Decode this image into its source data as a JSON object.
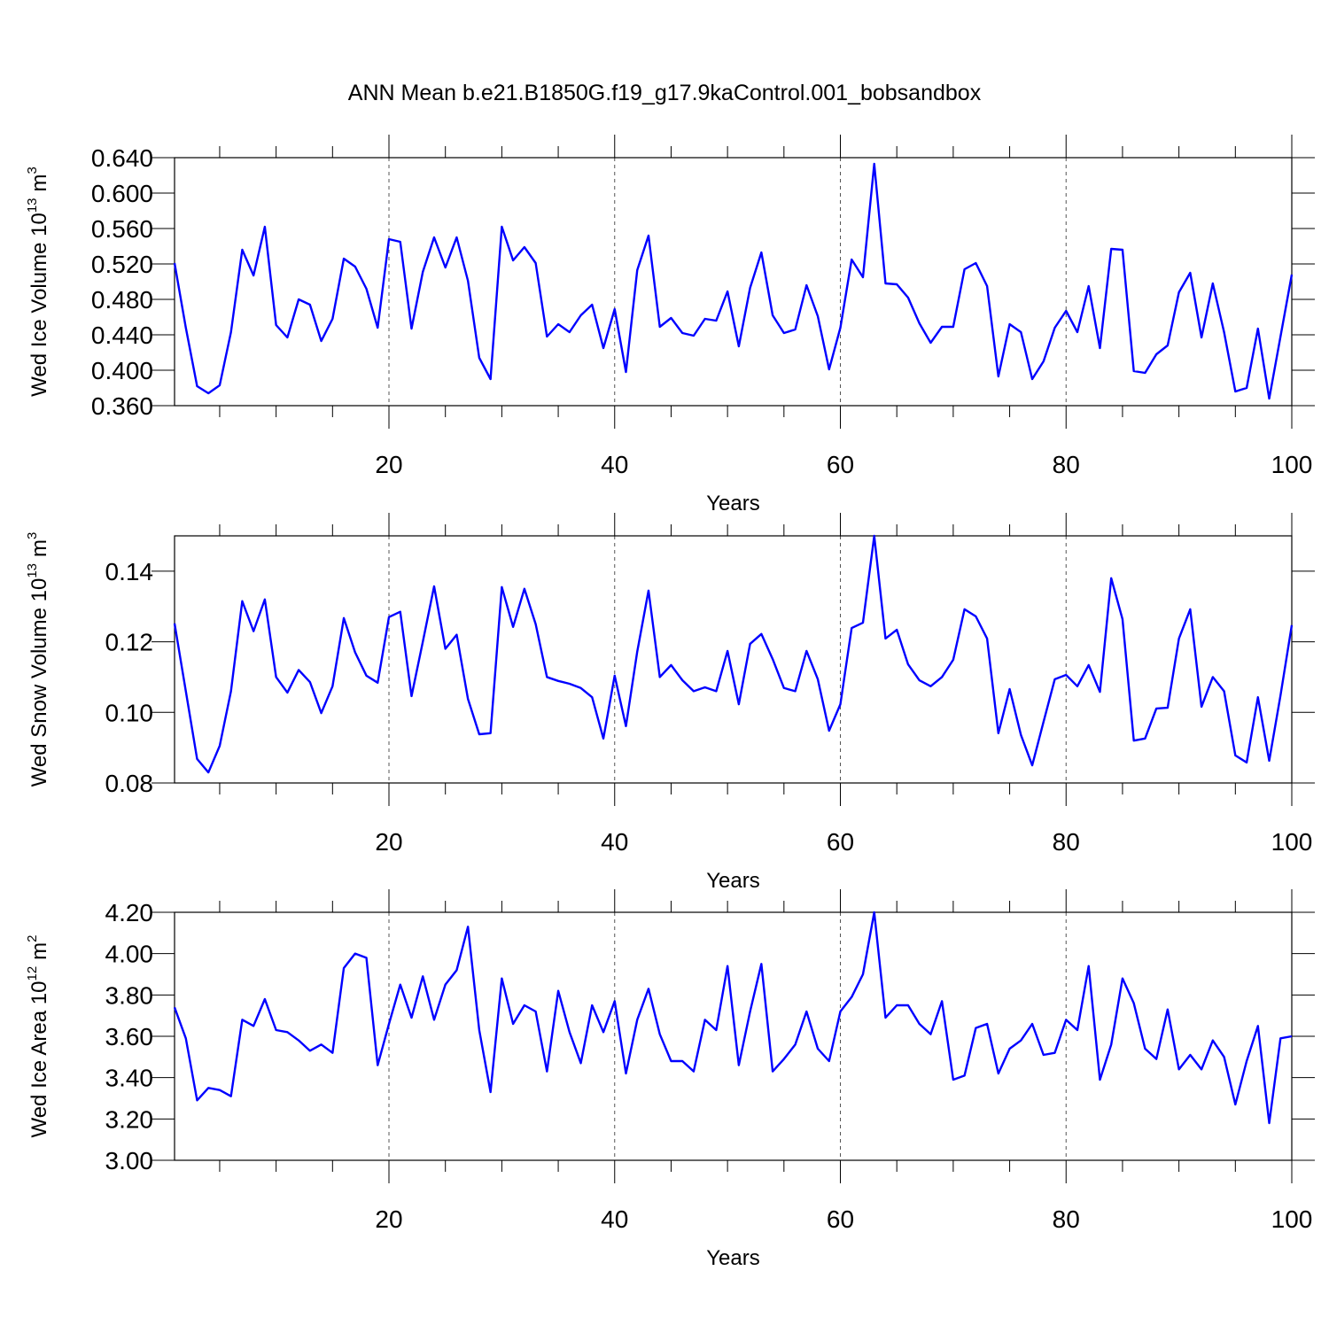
{
  "title": "ANN Mean b.e21.B1850G.f19_g17.9kaControl.001_bobsandbox",
  "chart_data": [
    {
      "type": "line",
      "xlabel": "Years",
      "ylabel": {
        "text": "Wed Ice Volume 10",
        "exp": "13",
        "unit": "m",
        "unit_exp": "3"
      },
      "color": "#0000ff",
      "xgrid": true,
      "xlim": [
        1,
        100
      ],
      "xticks": [
        20,
        40,
        60,
        80,
        100
      ],
      "xminorticks": [
        5,
        10,
        15,
        25,
        30,
        35,
        45,
        50,
        55,
        65,
        70,
        75,
        85,
        90,
        95
      ],
      "ylim": [
        0.36,
        0.64
      ],
      "yticks": [
        {
          "value": 0.36,
          "label": "0.360"
        },
        {
          "value": 0.4,
          "label": "0.400"
        },
        {
          "value": 0.44,
          "label": "0.440"
        },
        {
          "value": 0.48,
          "label": "0.480"
        },
        {
          "value": 0.52,
          "label": "0.520"
        },
        {
          "value": 0.56,
          "label": "0.560"
        },
        {
          "value": 0.6,
          "label": "0.600"
        },
        {
          "value": 0.64,
          "label": "0.640"
        }
      ],
      "x": [
        1,
        2,
        3,
        4,
        5,
        6,
        7,
        8,
        9,
        10,
        11,
        12,
        13,
        14,
        15,
        16,
        17,
        18,
        19,
        20,
        21,
        22,
        23,
        24,
        25,
        26,
        27,
        28,
        29,
        30,
        31,
        32,
        33,
        34,
        35,
        36,
        37,
        38,
        39,
        40,
        41,
        42,
        43,
        44,
        45,
        46,
        47,
        48,
        49,
        50,
        51,
        52,
        53,
        54,
        55,
        56,
        57,
        58,
        59,
        60,
        61,
        62,
        63,
        64,
        65,
        66,
        67,
        68,
        69,
        70,
        71,
        72,
        73,
        74,
        75,
        76,
        77,
        78,
        79,
        80,
        81,
        82,
        83,
        84,
        85,
        86,
        87,
        88,
        89,
        90,
        91,
        92,
        93,
        94,
        95,
        96,
        97,
        98,
        99,
        100
      ],
      "values": [
        0.521,
        0.448,
        0.382,
        0.374,
        0.383,
        0.443,
        0.536,
        0.507,
        0.562,
        0.451,
        0.437,
        0.48,
        0.474,
        0.433,
        0.458,
        0.526,
        0.517,
        0.492,
        0.448,
        0.548,
        0.545,
        0.447,
        0.511,
        0.55,
        0.516,
        0.55,
        0.501,
        0.414,
        0.39,
        0.562,
        0.524,
        0.539,
        0.521,
        0.438,
        0.452,
        0.443,
        0.462,
        0.474,
        0.425,
        0.469,
        0.398,
        0.513,
        0.552,
        0.449,
        0.459,
        0.442,
        0.439,
        0.458,
        0.456,
        0.489,
        0.427,
        0.493,
        0.533,
        0.462,
        0.442,
        0.446,
        0.496,
        0.461,
        0.401,
        0.448,
        0.525,
        0.505,
        0.633,
        0.498,
        0.497,
        0.482,
        0.453,
        0.431,
        0.449,
        0.449,
        0.514,
        0.521,
        0.495,
        0.393,
        0.452,
        0.443,
        0.39,
        0.41,
        0.448,
        0.467,
        0.443,
        0.495,
        0.425,
        0.537,
        0.536,
        0.399,
        0.397,
        0.418,
        0.428,
        0.488,
        0.51,
        0.437,
        0.498,
        0.443,
        0.376,
        0.38,
        0.447,
        0.368,
        0.438,
        0.508
      ]
    },
    {
      "type": "line",
      "xlabel": "Years",
      "ylabel": {
        "text": "Wed Snow Volume 10",
        "exp": "13",
        "unit": "m",
        "unit_exp": "3"
      },
      "color": "#0000ff",
      "xgrid": true,
      "xlim": [
        1,
        100
      ],
      "xticks": [
        20,
        40,
        60,
        80,
        100
      ],
      "xminorticks": [
        5,
        10,
        15,
        25,
        30,
        35,
        45,
        50,
        55,
        65,
        70,
        75,
        85,
        90,
        95
      ],
      "ylim": [
        0.08,
        0.15
      ],
      "yticks": [
        0.08,
        {
          "value": 0.1,
          "label": "0.10"
        },
        0.12,
        0.14
      ],
      "x": [
        1,
        2,
        3,
        4,
        5,
        6,
        7,
        8,
        9,
        10,
        11,
        12,
        13,
        14,
        15,
        16,
        17,
        18,
        19,
        20,
        21,
        22,
        23,
        24,
        25,
        26,
        27,
        28,
        29,
        30,
        31,
        32,
        33,
        34,
        35,
        36,
        37,
        38,
        39,
        40,
        41,
        42,
        43,
        44,
        45,
        46,
        47,
        48,
        49,
        50,
        51,
        52,
        53,
        54,
        55,
        56,
        57,
        58,
        59,
        60,
        61,
        62,
        63,
        64,
        65,
        66,
        67,
        68,
        69,
        70,
        71,
        72,
        73,
        74,
        75,
        76,
        77,
        78,
        79,
        80,
        81,
        82,
        83,
        84,
        85,
        86,
        87,
        88,
        89,
        90,
        91,
        92,
        93,
        94,
        95,
        96,
        97,
        98,
        99,
        100
      ],
      "values": [
        0.1252,
        0.106,
        0.0868,
        0.083,
        0.0905,
        0.106,
        0.1315,
        0.123,
        0.132,
        0.11,
        0.1056,
        0.112,
        0.1086,
        0.0998,
        0.1074,
        0.1267,
        0.117,
        0.1104,
        0.1084,
        0.127,
        0.1285,
        0.1046,
        0.12,
        0.1357,
        0.118,
        0.122,
        0.1038,
        0.0938,
        0.0941,
        0.1355,
        0.1242,
        0.135,
        0.125,
        0.11,
        0.1089,
        0.1081,
        0.1069,
        0.1043,
        0.0926,
        0.1104,
        0.0961,
        0.1172,
        0.1345,
        0.11,
        0.1134,
        0.1091,
        0.106,
        0.1071,
        0.106,
        0.1174,
        0.1023,
        0.1194,
        0.1222,
        0.1151,
        0.1069,
        0.106,
        0.1174,
        0.1094,
        0.0948,
        0.1023,
        0.1239,
        0.1254,
        0.15,
        0.1209,
        0.1234,
        0.1136,
        0.1091,
        0.1074,
        0.11,
        0.1149,
        0.1292,
        0.1272,
        0.1209,
        0.0941,
        0.1066,
        0.0936,
        0.085,
        0.0973,
        0.1094,
        0.1106,
        0.1074,
        0.1134,
        0.1058,
        0.138,
        0.1264,
        0.092,
        0.0926,
        0.1011,
        0.1013,
        0.1209,
        0.1292,
        0.1016,
        0.11,
        0.106,
        0.0878,
        0.0858,
        0.1043,
        0.0863,
        0.1048,
        0.1247
      ]
    },
    {
      "type": "line",
      "xlabel": "Years",
      "ylabel": {
        "text": "Wed Ice Area 10",
        "exp": "12",
        "unit": "m",
        "unit_exp": "2"
      },
      "color": "#0000ff",
      "xgrid": true,
      "xlim": [
        1,
        100
      ],
      "xticks": [
        20,
        40,
        60,
        80,
        100
      ],
      "xminorticks": [
        5,
        10,
        15,
        25,
        30,
        35,
        45,
        50,
        55,
        65,
        70,
        75,
        85,
        90,
        95
      ],
      "ylim": [
        3.0,
        4.2
      ],
      "yticks": [
        {
          "value": 3.0,
          "label": "3.00"
        },
        {
          "value": 3.2,
          "label": "3.20"
        },
        {
          "value": 3.4,
          "label": "3.40"
        },
        {
          "value": 3.6,
          "label": "3.60"
        },
        {
          "value": 3.8,
          "label": "3.80"
        },
        {
          "value": 4.0,
          "label": "4.00"
        },
        {
          "value": 4.2,
          "label": "4.20"
        }
      ],
      "x": [
        1,
        2,
        3,
        4,
        5,
        6,
        7,
        8,
        9,
        10,
        11,
        12,
        13,
        14,
        15,
        16,
        17,
        18,
        19,
        20,
        21,
        22,
        23,
        24,
        25,
        26,
        27,
        28,
        29,
        30,
        31,
        32,
        33,
        34,
        35,
        36,
        37,
        38,
        39,
        40,
        41,
        42,
        43,
        44,
        45,
        46,
        47,
        48,
        49,
        50,
        51,
        52,
        53,
        54,
        55,
        56,
        57,
        58,
        59,
        60,
        61,
        62,
        63,
        64,
        65,
        66,
        67,
        68,
        69,
        70,
        71,
        72,
        73,
        74,
        75,
        76,
        77,
        78,
        79,
        80,
        81,
        82,
        83,
        84,
        85,
        86,
        87,
        88,
        89,
        90,
        91,
        92,
        93,
        94,
        95,
        96,
        97,
        98,
        99,
        100
      ],
      "values": [
        3.74,
        3.59,
        3.29,
        3.35,
        3.34,
        3.31,
        3.68,
        3.65,
        3.78,
        3.63,
        3.62,
        3.58,
        3.53,
        3.56,
        3.52,
        3.93,
        4.0,
        3.98,
        3.46,
        3.66,
        3.85,
        3.69,
        3.89,
        3.68,
        3.85,
        3.92,
        4.13,
        3.63,
        3.33,
        3.88,
        3.66,
        3.75,
        3.72,
        3.43,
        3.82,
        3.62,
        3.47,
        3.75,
        3.62,
        3.77,
        3.42,
        3.68,
        3.83,
        3.61,
        3.48,
        3.48,
        3.43,
        3.68,
        3.63,
        3.94,
        3.46,
        3.72,
        3.95,
        3.43,
        3.49,
        3.56,
        3.72,
        3.54,
        3.48,
        3.72,
        3.79,
        3.9,
        4.2,
        3.69,
        3.75,
        3.75,
        3.66,
        3.61,
        3.77,
        3.39,
        3.41,
        3.64,
        3.66,
        3.42,
        3.54,
        3.58,
        3.66,
        3.51,
        3.52,
        3.68,
        3.63,
        3.94,
        3.39,
        3.56,
        3.88,
        3.76,
        3.54,
        3.49,
        3.73,
        3.44,
        3.51,
        3.44,
        3.58,
        3.5,
        3.27,
        3.48,
        3.65,
        3.18,
        3.59,
        3.6
      ]
    }
  ]
}
